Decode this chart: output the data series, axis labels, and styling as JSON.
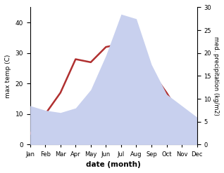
{
  "months": [
    "Jan",
    "Feb",
    "Mar",
    "Apr",
    "May",
    "Jun",
    "Jul",
    "Aug",
    "Sep",
    "Oct",
    "Nov",
    "Dec"
  ],
  "month_indices": [
    1,
    2,
    3,
    4,
    5,
    6,
    7,
    8,
    9,
    10,
    11,
    12
  ],
  "temp": [
    3.5,
    10.0,
    17.0,
    28.0,
    27.0,
    32.0,
    33.0,
    34.0,
    24.0,
    17.0,
    9.0,
    4.5
  ],
  "precip": [
    8.5,
    7.5,
    7.0,
    8.0,
    12.0,
    19.5,
    28.5,
    27.5,
    17.5,
    11.0,
    8.5,
    6.0
  ],
  "temp_color": "#b03030",
  "precip_fill_color": "#c8d0ee",
  "xlabel": "date (month)",
  "ylabel_left": "max temp (C)",
  "ylabel_right": "med. precipitation (kg/m2)",
  "ylim_left": [
    0,
    45
  ],
  "ylim_right": [
    0,
    30
  ],
  "yticks_left": [
    0,
    10,
    20,
    30,
    40
  ],
  "yticks_right": [
    0,
    5,
    10,
    15,
    20,
    25,
    30
  ],
  "bg_color": "#ffffff",
  "linewidth": 1.8
}
